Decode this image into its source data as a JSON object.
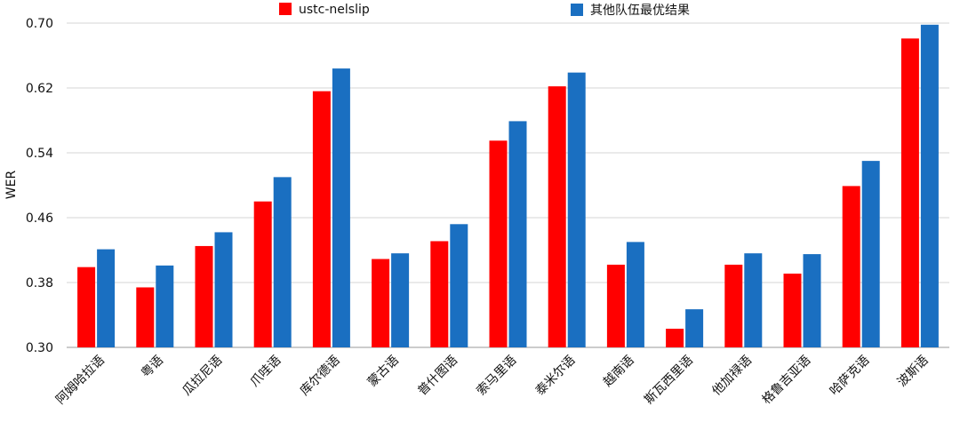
{
  "chart_data": {
    "type": "bar",
    "title": "",
    "xlabel": "",
    "ylabel": "WER",
    "ylim": [
      0.3,
      0.7
    ],
    "yticks": [
      "0.30",
      "0.38",
      "0.46",
      "0.54",
      "0.62",
      "0.70"
    ],
    "grid": true,
    "legend_position": "top",
    "categories": [
      "阿姆哈拉语",
      "粤语",
      "瓜拉尼语",
      "爪哇语",
      "库尔德语",
      "蒙古语",
      "普什图语",
      "索马里语",
      "泰米尔语",
      "越南语",
      "斯瓦西里语",
      "他加禄语",
      "格鲁吉亚语",
      "哈萨克语",
      "波斯语"
    ],
    "series": [
      {
        "name": "ustc-nelslip",
        "color": "#ff0000",
        "values": [
          0.399,
          0.374,
          0.425,
          0.48,
          0.616,
          0.409,
          0.431,
          0.555,
          0.622,
          0.402,
          0.323,
          0.402,
          0.391,
          0.499,
          0.681
        ]
      },
      {
        "name": "其他队伍最优结果",
        "color": "#1a6fc1",
        "values": [
          0.421,
          0.401,
          0.442,
          0.51,
          0.644,
          0.416,
          0.452,
          0.579,
          0.639,
          0.43,
          0.347,
          0.416,
          0.415,
          0.53,
          0.698
        ]
      }
    ]
  }
}
